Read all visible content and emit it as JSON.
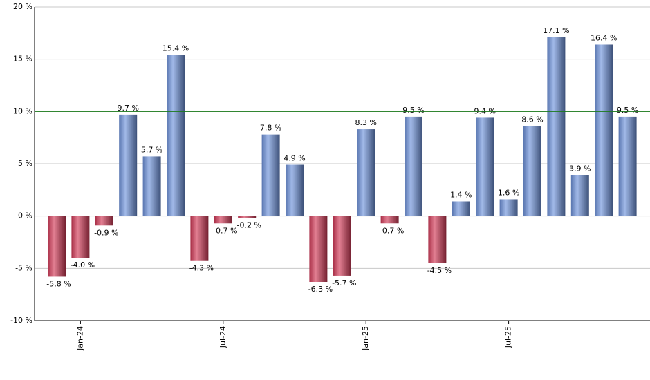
{
  "chart_data": {
    "type": "bar",
    "categories": [
      null,
      "Jan-24",
      null,
      null,
      null,
      null,
      null,
      "Jul-24",
      null,
      null,
      null,
      null,
      null,
      "Jan-25",
      null,
      null,
      null,
      null,
      null,
      "Jul-25",
      null,
      null,
      null,
      null,
      null
    ],
    "values": [
      -5.8,
      -4.0,
      -0.9,
      9.7,
      5.7,
      15.4,
      -4.3,
      -0.7,
      -0.2,
      7.8,
      4.9,
      -6.3,
      -5.7,
      8.3,
      -0.7,
      9.5,
      -4.5,
      1.4,
      9.4,
      1.6,
      8.6,
      17.1,
      3.9,
      16.4,
      9.5
    ],
    "value_labels": [
      "-5.8 %",
      "-4.0 %",
      "-0.9 %",
      "9.7 %",
      "5.7 %",
      "15.4 %",
      "-4.3 %",
      "-0.7 %",
      "-0.2 %",
      "7.8 %",
      "4.9 %",
      "-6.3 %",
      "-5.7 %",
      "8.3 %",
      "-0.7 %",
      "9.5 %",
      "-4.5 %",
      "1.4 %",
      "9.4 %",
      "1.6 %",
      "8.6 %",
      "17.1 %",
      "3.9 %",
      "16.4 %",
      "9.5 %"
    ],
    "positive_color": "#6f93dc",
    "negative_color": "#d23a58",
    "reference_line": 10,
    "reference_color": "#1a7a1a",
    "ylim": [
      -10,
      20
    ],
    "yticks": [
      {
        "value": -10,
        "label": "-10 %"
      },
      {
        "value": -5,
        "label": "-5 %"
      },
      {
        "value": 0,
        "label": "0 %"
      },
      {
        "value": 5,
        "label": "5 %"
      },
      {
        "value": 10,
        "label": "10 %"
      },
      {
        "value": 15,
        "label": "15 %"
      },
      {
        "value": 20,
        "label": "20 %"
      }
    ],
    "grid": true
  }
}
